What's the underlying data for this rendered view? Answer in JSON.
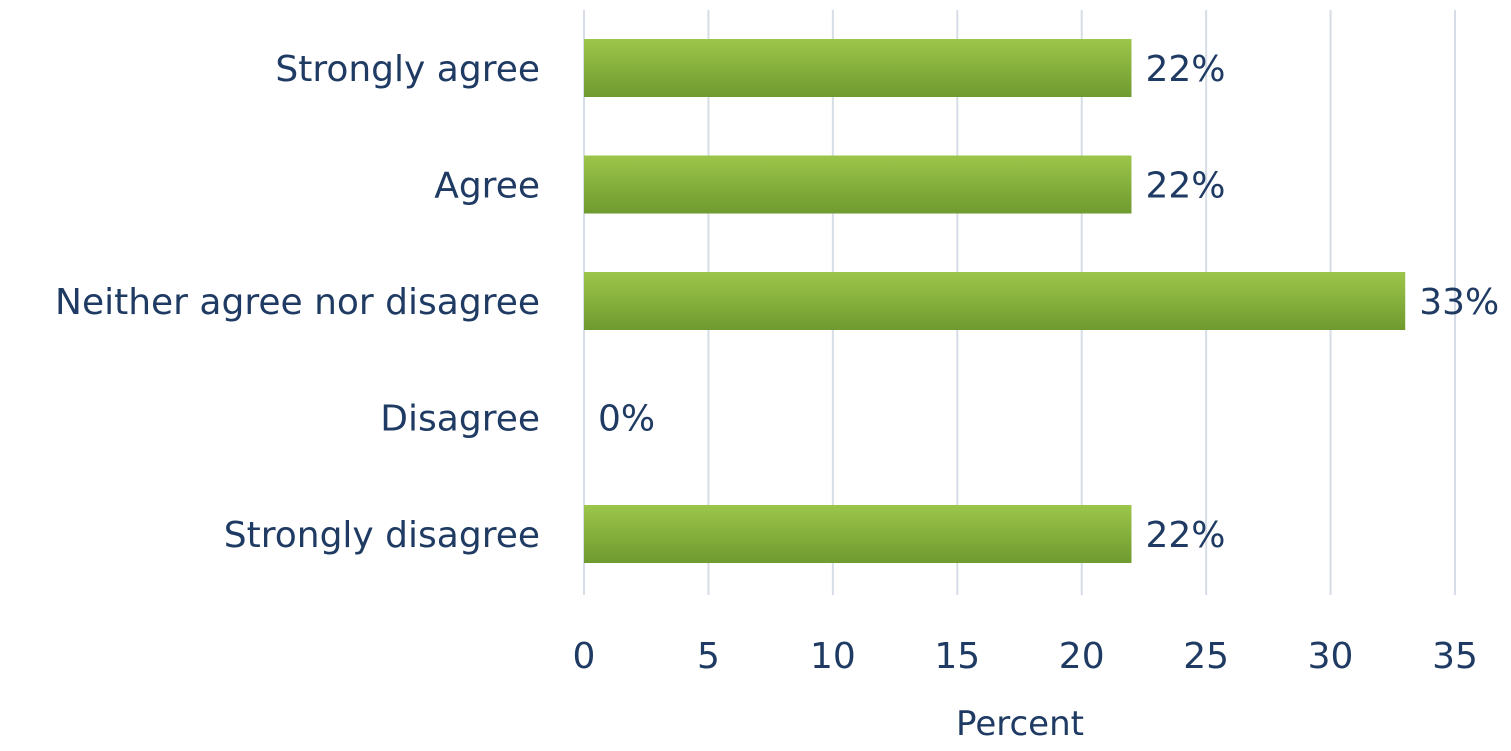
{
  "chart_data": {
    "type": "bar",
    "orientation": "horizontal",
    "categories": [
      "Strongly agree",
      "Agree",
      "Neither agree nor disagree",
      "Disagree",
      "Strongly disagree"
    ],
    "values": [
      22,
      22,
      33,
      0,
      22
    ],
    "data_labels": [
      "22%",
      "22%",
      "33%",
      "0%",
      "22%"
    ],
    "xlabel": "Percent",
    "ylabel": "",
    "xlim": [
      0,
      35
    ],
    "x_ticks": [
      0,
      5,
      10,
      15,
      20,
      25,
      30,
      35
    ],
    "grid": "vertical",
    "legend": "none",
    "colors": {
      "bar_top": "#9cc64a",
      "bar_bottom": "#6f9a2f",
      "text": "#1f3b63",
      "grid": "#d7dde6"
    }
  }
}
